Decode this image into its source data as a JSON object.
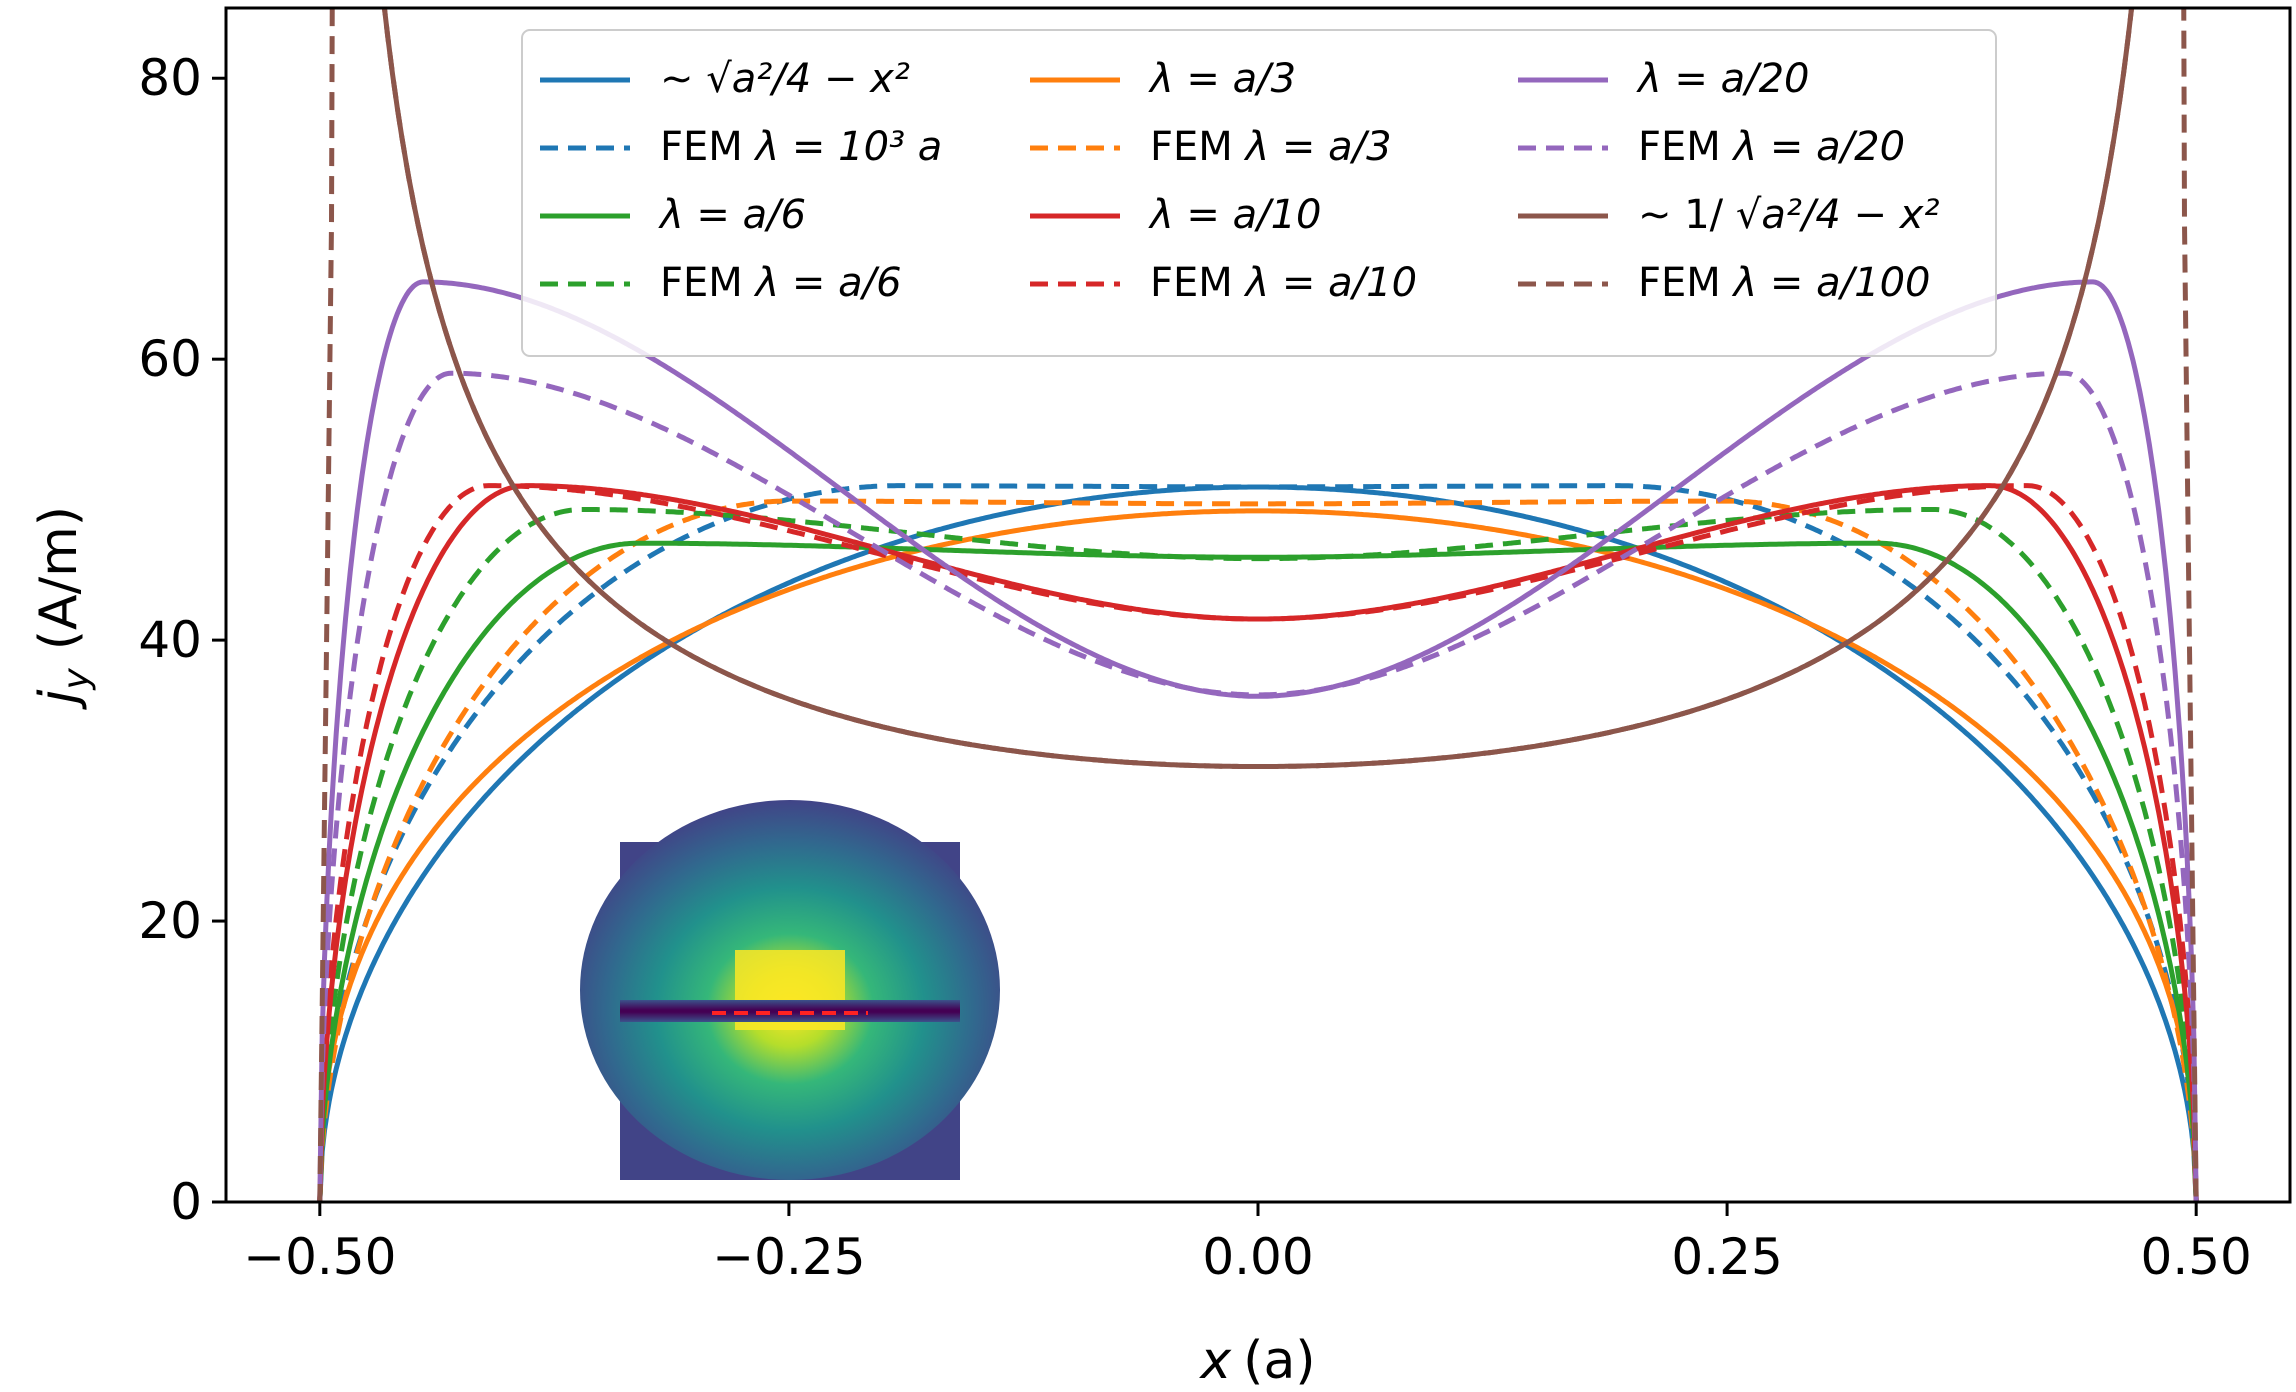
{
  "chart_data": {
    "type": "line",
    "xlabel_var": "x",
    "xlabel_unit": "(a)",
    "ylabel_var": "j",
    "ylabel_sub": "y",
    "ylabel_unit": "(A/m)",
    "xlim": [
      -0.55,
      0.55
    ],
    "ylim": [
      0,
      85
    ],
    "x_ticks": [
      -0.5,
      -0.25,
      0.0,
      0.25,
      0.5
    ],
    "x_tick_labels": [
      "−0.50",
      "−0.25",
      "0.00",
      "0.25",
      "0.50"
    ],
    "y_ticks": [
      0,
      20,
      40,
      60,
      80
    ],
    "y_tick_labels": [
      "0",
      "20",
      "40",
      "60",
      "80"
    ],
    "grid": false,
    "legend_position": "top",
    "legend_ncol": 3,
    "series": [
      {
        "id": "analytic_sqrt",
        "label_prefix": "∼",
        "label_math": "√a²/4 − x²",
        "color": "#1f77b4",
        "dash": "solid",
        "kind": "sqrt",
        "peak": 50.9,
        "wall": 0
      },
      {
        "id": "fem_1e3",
        "label_prefix": "FEM",
        "label_math": "λ = 10³ a",
        "color": "#1f77b4",
        "dash": "dashed",
        "kind": "fem_flat",
        "peak": 51.0,
        "center": 50.9,
        "peak_x": 0.19,
        "wall": 0
      },
      {
        "id": "lam_a3",
        "label_prefix": "",
        "label_math": "λ = a/3",
        "color": "#ff7f0e",
        "dash": "solid",
        "kind": "lambda",
        "center": 49.2,
        "peak": 49.2,
        "peak_x": 0.0,
        "wall": 0
      },
      {
        "id": "fem_a3",
        "label_prefix": "FEM",
        "label_math": "λ = a/3",
        "color": "#ff7f0e",
        "dash": "dashed",
        "kind": "lambda",
        "center": 49.7,
        "peak": 49.9,
        "peak_x": 0.25,
        "wall": 0
      },
      {
        "id": "lam_a6",
        "label_prefix": "",
        "label_math": "λ = a/6",
        "color": "#2ca02c",
        "dash": "solid",
        "kind": "lambda",
        "center": 45.9,
        "peak": 46.9,
        "peak_x": 0.33,
        "wall": 0
      },
      {
        "id": "fem_a6",
        "label_prefix": "FEM",
        "label_math": "λ = a/6",
        "color": "#2ca02c",
        "dash": "dashed",
        "kind": "lambda",
        "center": 45.8,
        "peak": 49.3,
        "peak_x": 0.36,
        "wall": 0
      },
      {
        "id": "lam_a10",
        "label_prefix": "",
        "label_math": "λ = a/10",
        "color": "#d62728",
        "dash": "solid",
        "kind": "lambda",
        "center": 41.5,
        "peak": 51.0,
        "peak_x": 0.39,
        "wall": 0
      },
      {
        "id": "fem_a10",
        "label_prefix": "FEM",
        "label_math": "λ = a/10",
        "color": "#d62728",
        "dash": "dashed",
        "kind": "lambda",
        "center": 41.5,
        "peak": 51.0,
        "peak_x": 0.41,
        "wall": 0
      },
      {
        "id": "lam_a20",
        "label_prefix": "",
        "label_math": "λ = a/20",
        "color": "#9467bd",
        "dash": "solid",
        "kind": "lambda",
        "center": 36.0,
        "peak": 65.5,
        "peak_x": 0.445,
        "wall": 0
      },
      {
        "id": "fem_a20",
        "label_prefix": "FEM",
        "label_math": "λ = a/20",
        "color": "#9467bd",
        "dash": "dashed",
        "kind": "lambda",
        "center": 36.1,
        "peak": 59.0,
        "peak_x": 0.43,
        "wall": 0
      },
      {
        "id": "analytic_inv",
        "label_prefix": "∼ 1/",
        "label_math": "√a²/4 − x²",
        "color": "#8c564b",
        "dash": "solid",
        "kind": "inv",
        "center": 31.0
      },
      {
        "id": "fem_a100",
        "label_prefix": "FEM",
        "label_math": "λ = a/100",
        "color": "#8c564b",
        "dash": "dashed",
        "kind": "fem_inv",
        "center": 31.0,
        "edge_cap": 78
      }
    ]
  },
  "inset": {
    "description_name": "current-density-colormap",
    "bg_color": "#414487",
    "hot_color": "#fde725",
    "strip_color": "#2a0a3c",
    "line_color": "#ff2222"
  }
}
